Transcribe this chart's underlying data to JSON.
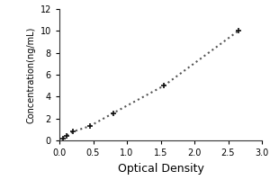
{
  "x": [
    0.05,
    0.1,
    0.2,
    0.45,
    0.8,
    1.55,
    2.65
  ],
  "y": [
    0.2,
    0.4,
    0.8,
    1.3,
    2.5,
    5.0,
    10.0
  ],
  "xlabel": "Optical Density",
  "ylabel": "Concentration(ng/mL)",
  "xlim": [
    0,
    3
  ],
  "ylim": [
    0,
    12
  ],
  "xticks": [
    0,
    0.5,
    1,
    1.5,
    2,
    2.5,
    3
  ],
  "yticks": [
    0,
    2,
    4,
    6,
    8,
    10,
    12
  ],
  "line_color": "#555555",
  "marker_color": "#111111",
  "line_style": "dotted",
  "marker_style": "+",
  "marker_size": 5,
  "marker_edge_width": 1.2,
  "line_width": 1.5,
  "background_color": "#ffffff",
  "title": "",
  "xlabel_fontsize": 9,
  "ylabel_fontsize": 7,
  "tick_fontsize": 7
}
